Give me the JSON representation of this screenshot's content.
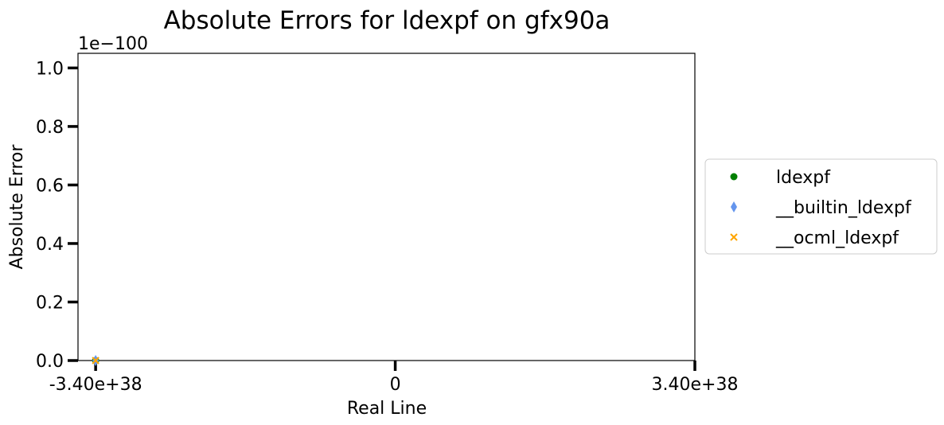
{
  "chart_data": {
    "type": "scatter",
    "title": "Absolute Errors for ldexpf on gfx90a",
    "xlabel": "Real Line",
    "ylabel": "Absolute Error",
    "y_offset_text": "1e−100",
    "xlim": [
      -3.6e+38,
      3.4e+38
    ],
    "ylim": [
      0,
      1.05
    ],
    "x_ticks": [
      {
        "value": -3.4e+38,
        "label": "-3.40e+38"
      },
      {
        "value": 0,
        "label": "0"
      },
      {
        "value": 3.4e+38,
        "label": "3.40e+38"
      }
    ],
    "y_ticks": [
      {
        "value": 0.0,
        "label": "0.0"
      },
      {
        "value": 0.2,
        "label": "0.2"
      },
      {
        "value": 0.4,
        "label": "0.4"
      },
      {
        "value": 0.6,
        "label": "0.6"
      },
      {
        "value": 0.8,
        "label": "0.8"
      },
      {
        "value": 1.0,
        "label": "1.0"
      }
    ],
    "grid": false,
    "legend_position": "right, outside plot",
    "series": [
      {
        "name": "ldexpf",
        "marker": "circle",
        "color": "#008000",
        "points": [
          {
            "x": -3.4e+38,
            "y": 0
          }
        ]
      },
      {
        "name": "__builtin_ldexpf",
        "marker": "diamond",
        "color": "#6495ed",
        "points": [
          {
            "x": -3.4e+38,
            "y": 0
          }
        ]
      },
      {
        "name": "__ocml_ldexpf",
        "marker": "x",
        "color": "#ffa500",
        "points": [
          {
            "x": -3.4e+38,
            "y": 0
          }
        ]
      }
    ]
  }
}
